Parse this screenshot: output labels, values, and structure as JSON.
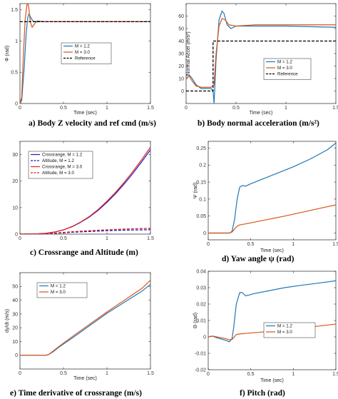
{
  "chart_data": [
    {
      "type": "line",
      "caption": "a)   Body Z velocity and ref cmd (m/s)",
      "xlabel": "Time (sec)",
      "ylabel": "Φ (rad)",
      "xlim": [
        0,
        1.5
      ],
      "ylim": [
        0,
        1.6
      ],
      "xticks": [
        0,
        0.5,
        1,
        1.5
      ],
      "xtick_labels": [
        "0",
        "0.5",
        "1",
        "1.5"
      ],
      "yticks": [
        0,
        0.5,
        1,
        1.5
      ],
      "ytick_labels": [
        "0",
        "0.5",
        "1",
        "1.5"
      ],
      "legend_position": "center-right",
      "series": [
        {
          "name": "M = 1.2",
          "color": "#1f77b4",
          "dash": "",
          "x": [
            0,
            0.02,
            0.05,
            0.07,
            0.09,
            0.1,
            0.11,
            0.13,
            0.15,
            0.17,
            0.2,
            0.25,
            0.3,
            0.4,
            0.6,
            1.0,
            1.5
          ],
          "y": [
            0,
            0.05,
            0.6,
            1.1,
            1.38,
            1.43,
            1.42,
            1.36,
            1.32,
            1.31,
            1.32,
            1.315,
            1.31,
            1.31,
            1.31,
            1.31,
            1.31
          ]
        },
        {
          "name": "M = 3.0",
          "color": "#d9541a",
          "dash": "",
          "x": [
            0,
            0.02,
            0.04,
            0.06,
            0.08,
            0.09,
            0.1,
            0.11,
            0.12,
            0.14,
            0.16,
            0.18,
            0.2,
            0.25,
            0.3,
            0.5,
            1.0,
            1.5
          ],
          "y": [
            0,
            0.1,
            0.8,
            1.35,
            1.58,
            1.6,
            1.55,
            1.42,
            1.3,
            1.22,
            1.26,
            1.3,
            1.31,
            1.31,
            1.31,
            1.31,
            1.31,
            1.31
          ]
        },
        {
          "name": "Reference",
          "color": "#000000",
          "dash": "4,2",
          "x": [
            0,
            1.5
          ],
          "y": [
            1.31,
            1.31
          ]
        }
      ]
    },
    {
      "type": "line",
      "caption": "b)   Body normal acceleration (m/s²)",
      "xlabel": "Time (sec)",
      "ylabel": "Normal Accel  (m/s²)",
      "xlim": [
        0,
        1.5
      ],
      "ylim": [
        -10,
        70
      ],
      "xticks": [
        0,
        0.5,
        1,
        1.5
      ],
      "xtick_labels": [
        "0",
        "0.5",
        "1",
        "1.5"
      ],
      "yticks": [
        0,
        10,
        20,
        30,
        40,
        50,
        60
      ],
      "ytick_labels": [
        "0",
        "10",
        "20",
        "30",
        "40",
        "50",
        "60"
      ],
      "legend_position": "bottom-right",
      "series": [
        {
          "name": "M = 1.2",
          "color": "#1f77b4",
          "dash": "",
          "x": [
            0,
            0.03,
            0.06,
            0.1,
            0.15,
            0.2,
            0.25,
            0.27,
            0.28,
            0.3,
            0.33,
            0.36,
            0.38,
            0.41,
            0.45,
            0.5,
            0.7,
            1.0,
            1.5
          ],
          "y": [
            12,
            13,
            10,
            5,
            2,
            2,
            2,
            0,
            -10,
            25,
            57,
            64,
            62,
            53,
            50,
            52,
            52,
            52,
            51
          ]
        },
        {
          "name": "M = 3.0",
          "color": "#d9541a",
          "dash": "",
          "x": [
            0,
            0.03,
            0.06,
            0.1,
            0.15,
            0.2,
            0.25,
            0.28,
            0.3,
            0.33,
            0.36,
            0.39,
            0.43,
            0.5,
            0.7,
            1.0,
            1.5
          ],
          "y": [
            10,
            12,
            8,
            4,
            3,
            3,
            3,
            5,
            30,
            52,
            58,
            57,
            53,
            52,
            53,
            53,
            53
          ]
        },
        {
          "name": "Reference",
          "color": "#000000",
          "dash": "4,2",
          "x": [
            0,
            0.27,
            0.27,
            0.6,
            0.6,
            1.5
          ],
          "y": [
            0,
            0,
            40,
            40,
            40,
            40
          ]
        }
      ]
    },
    {
      "type": "line",
      "caption": "c)   Crossrange and Altitude (m)",
      "xlabel": "",
      "ylabel": "",
      "xlim": [
        0,
        1.5
      ],
      "ylim": [
        0,
        35
      ],
      "xticks": [
        0,
        0.5,
        1,
        1.5
      ],
      "xtick_labels": [
        "0",
        "0.5",
        "1",
        "1.5"
      ],
      "yticks": [
        0,
        10,
        20,
        30
      ],
      "ytick_labels": [
        "0",
        "10",
        "20",
        "30"
      ],
      "legend_position": "top-left",
      "series": [
        {
          "name": "Crossrange, M = 1.2",
          "color": "#1f1fbf",
          "dash": "",
          "x": [
            0,
            0.2,
            0.3,
            0.4,
            0.5,
            0.6,
            0.7,
            0.8,
            0.9,
            1.0,
            1.1,
            1.2,
            1.3,
            1.4,
            1.5
          ],
          "y": [
            0,
            0.1,
            0.3,
            0.8,
            1.6,
            2.8,
            4.5,
            6.5,
            9.0,
            12.0,
            15.3,
            19.0,
            23.0,
            27.3,
            31.8
          ]
        },
        {
          "name": "Altitude, M = 1.2",
          "color": "#1f1fbf",
          "dash": "4,2",
          "x": [
            0,
            0.2,
            0.4,
            0.6,
            0.8,
            1.0,
            1.2,
            1.4,
            1.5
          ],
          "y": [
            0,
            0.05,
            0.3,
            0.7,
            1.0,
            1.3,
            1.5,
            1.6,
            1.7
          ]
        },
        {
          "name": "Crossrange, M = 3.0",
          "color": "#e02020",
          "dash": "",
          "x": [
            0,
            0.2,
            0.3,
            0.4,
            0.5,
            0.6,
            0.7,
            0.8,
            0.9,
            1.0,
            1.1,
            1.2,
            1.3,
            1.4,
            1.5
          ],
          "y": [
            0,
            0.1,
            0.3,
            0.8,
            1.6,
            2.9,
            4.6,
            6.7,
            9.3,
            12.4,
            15.8,
            19.6,
            23.7,
            28.1,
            32.8
          ]
        },
        {
          "name": "Altitude, M = 3.0",
          "color": "#e02020",
          "dash": "4,2",
          "x": [
            0,
            0.2,
            0.4,
            0.6,
            0.8,
            1.0,
            1.2,
            1.4,
            1.5
          ],
          "y": [
            0,
            0.05,
            0.4,
            0.9,
            1.3,
            1.6,
            1.9,
            2.1,
            2.2
          ]
        }
      ]
    },
    {
      "type": "line",
      "caption": "d)   Yaw angle ψ (rad)",
      "xlabel": "Time (sec)",
      "ylabel": "Ψ (rad)",
      "xlim": [
        0,
        1.5
      ],
      "ylim": [
        -0.02,
        0.27
      ],
      "xticks": [
        0,
        0.5,
        1,
        1.5
      ],
      "xtick_labels": [
        "0",
        "0.5",
        "1",
        "1.5"
      ],
      "yticks": [
        0,
        0.05,
        0.1,
        0.15,
        0.2,
        0.25
      ],
      "ytick_labels": [
        "0",
        "0.05",
        "0.1",
        "0.15",
        "0.2",
        "0.25"
      ],
      "legend_position": "none",
      "series": [
        {
          "name": "M = 1.2",
          "color": "#1f77b4",
          "dash": "",
          "x": [
            0,
            0.25,
            0.28,
            0.31,
            0.34,
            0.37,
            0.4,
            0.44,
            0.5,
            0.6,
            0.8,
            1.0,
            1.2,
            1.4,
            1.5
          ],
          "y": [
            0,
            0,
            0.005,
            0.04,
            0.1,
            0.135,
            0.14,
            0.138,
            0.145,
            0.155,
            0.175,
            0.195,
            0.218,
            0.245,
            0.265
          ]
        },
        {
          "name": "M = 3.0",
          "color": "#d9541a",
          "dash": "",
          "x": [
            0,
            0.25,
            0.28,
            0.31,
            0.34,
            0.37,
            0.4,
            0.5,
            0.7,
            0.9,
            1.1,
            1.3,
            1.5
          ],
          "y": [
            0,
            0,
            0.003,
            0.012,
            0.02,
            0.024,
            0.025,
            0.03,
            0.04,
            0.05,
            0.061,
            0.072,
            0.083
          ]
        }
      ]
    },
    {
      "type": "line",
      "caption": "e)   Time derivative of crossrange (m/s)",
      "xlabel": "Time (sec)",
      "ylabel": "dy/dt (m/s)",
      "xlim": [
        0,
        1.5
      ],
      "ylim": [
        -10,
        60
      ],
      "xticks": [
        0,
        0.5,
        1,
        1.5
      ],
      "xtick_labels": [
        "0",
        "0.5",
        "1",
        "1.5"
      ],
      "yticks": [
        0,
        10,
        20,
        30,
        40,
        50
      ],
      "ytick_labels": [
        "0",
        "10",
        "20",
        "30",
        "40",
        "50"
      ],
      "legend_position": "top-left",
      "series": [
        {
          "name": "M = 1.2",
          "color": "#1f77b4",
          "dash": "",
          "x": [
            0,
            0.3,
            0.33,
            0.38,
            0.45,
            0.6,
            0.8,
            1.0,
            1.2,
            1.4,
            1.5
          ],
          "y": [
            0,
            0,
            0.5,
            2.5,
            6,
            12.5,
            21.5,
            30.5,
            38.5,
            46.5,
            51.5
          ]
        },
        {
          "name": "M = 3.0",
          "color": "#d9541a",
          "dash": "",
          "x": [
            0,
            0.3,
            0.33,
            0.38,
            0.45,
            0.6,
            0.8,
            1.0,
            1.2,
            1.4,
            1.5
          ],
          "y": [
            0,
            0,
            0.6,
            3,
            6.5,
            13.5,
            22.5,
            31.5,
            40,
            48.5,
            54.5
          ]
        }
      ]
    },
    {
      "type": "line",
      "caption": "f)   Pitch (rad)",
      "xlabel": "Time (sec)",
      "ylabel": "Θ (rad)",
      "xlim": [
        0,
        1.5
      ],
      "ylim": [
        -0.02,
        0.04
      ],
      "xticks": [
        0,
        0.5,
        1,
        1.5
      ],
      "xtick_labels": [
        "0",
        "0.5",
        "1",
        "1.5"
      ],
      "yticks": [
        -0.02,
        -0.01,
        0,
        0.01,
        0.02,
        0.03,
        0.04
      ],
      "ytick_labels": [
        "-0.02",
        "-0.01",
        "0",
        "0.01",
        "0.02",
        "0.03",
        "0.04"
      ],
      "legend_position": "center-right",
      "series": [
        {
          "name": "M = 1.2",
          "color": "#1f77b4",
          "dash": "",
          "x": [
            0,
            0.05,
            0.1,
            0.2,
            0.25,
            0.28,
            0.3,
            0.33,
            0.37,
            0.4,
            0.44,
            0.48,
            0.55,
            0.7,
            0.9,
            1.1,
            1.3,
            1.5
          ],
          "y": [
            0,
            0.0005,
            -0.0005,
            -0.002,
            -0.003,
            -0.001,
            0.006,
            0.02,
            0.027,
            0.027,
            0.025,
            0.0255,
            0.0265,
            0.028,
            0.03,
            0.0315,
            0.0328,
            0.0342
          ]
        },
        {
          "name": "M = 3.0",
          "color": "#d9541a",
          "dash": "",
          "x": [
            0,
            0.05,
            0.1,
            0.2,
            0.25,
            0.28,
            0.3,
            0.33,
            0.37,
            0.45,
            0.6,
            0.8,
            1.0,
            1.2,
            1.5
          ],
          "y": [
            0,
            0.0005,
            0,
            -0.001,
            -0.0018,
            -0.0015,
            -0.0005,
            0.0015,
            0.0018,
            0.0022,
            0.0028,
            0.0038,
            0.005,
            0.006,
            0.0078
          ]
        }
      ]
    }
  ]
}
